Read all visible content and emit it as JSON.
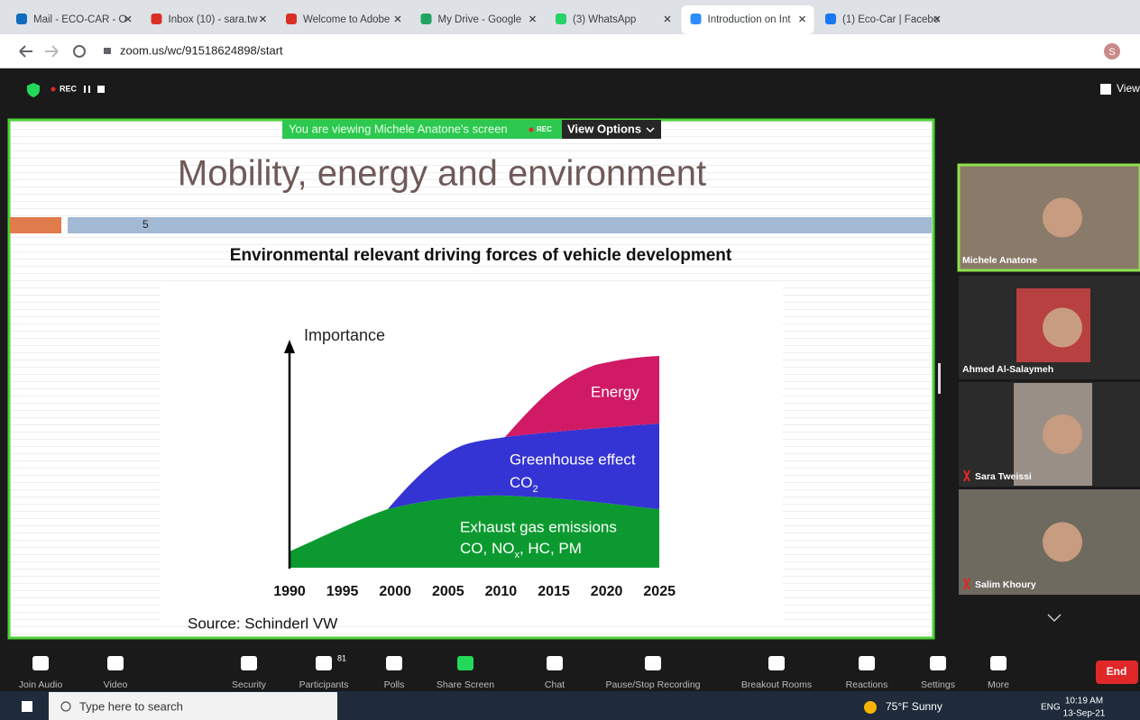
{
  "browser": {
    "tabs": [
      "Mail - ECO-CAR - O",
      "Inbox (10) - sara.tw",
      "Welcome to Adobe",
      "My Drive - Google",
      "(3) WhatsApp",
      "Introduction on Int",
      "(1) Eco-Car | Facebo"
    ],
    "url": "zoom.us/wc/91518624898/start",
    "profile": "S"
  },
  "zoom": {
    "rec": "REC",
    "view": "View",
    "banner": "You are viewing Michele Anatone's screen",
    "banner_rec": "REC",
    "view_options": "View Options"
  },
  "slide": {
    "title": "Mobility, energy and environment",
    "number": "5",
    "subtitle": "Environmental relevant driving forces of vehicle development",
    "axis_label": "Importance",
    "years": [
      1990,
      1995,
      2000,
      2005,
      2010,
      2015,
      2020,
      2025
    ],
    "energy": "Energy",
    "greenhouse": "Greenhouse effect",
    "co2": {
      "text": "CO",
      "sub": "2"
    },
    "exhaust": "Exhaust gas emissions",
    "exhaust_list": {
      "before": "CO, NO",
      "sub": "x",
      "after": ", HC, PM"
    },
    "source": "Source: Schinderl VW"
  },
  "participants": [
    "Michele Anatone",
    "Ahmed Al-Salaymeh",
    "Sara Tweissi",
    "Salim Khoury"
  ],
  "toolbar": {
    "items": [
      "Join Audio",
      "Video",
      "Security",
      "Participants",
      "Polls",
      "Share Screen",
      "Chat",
      "Pause/Stop Recording",
      "Breakout Rooms",
      "Reactions",
      "Settings",
      "More"
    ],
    "participants_count": "81",
    "end": "End"
  },
  "taskbar": {
    "search": "Type here to search",
    "weather": "75°F  Sunny",
    "lang": "ENG",
    "time": "10:19 AM",
    "date": "13-Sep-21"
  }
}
